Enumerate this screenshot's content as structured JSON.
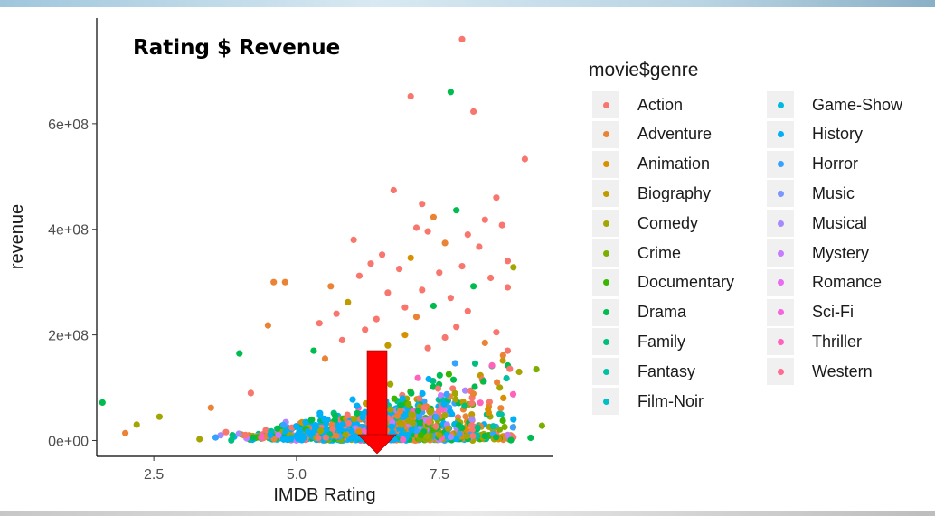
{
  "chart_data": {
    "type": "scatter",
    "title": "Rating $ Revenue",
    "xlabel": "IMDB Rating",
    "ylabel": "revenue",
    "x_ticks": [
      "2.5",
      "5.0",
      "7.5"
    ],
    "x_tick_values": [
      2.5,
      5.0,
      7.5
    ],
    "y_ticks": [
      "0e+00",
      "2e+08",
      "4e+08",
      "6e+08"
    ],
    "y_tick_values": [
      0,
      200000000,
      400000000,
      600000000
    ],
    "xlim": [
      1.5,
      9.5
    ],
    "ylim": [
      -30000000,
      800000000
    ],
    "grid": false,
    "legend_title": "movie$genre",
    "legend_position": "right",
    "legend": [
      {
        "name": "Action",
        "color": "#F8766D"
      },
      {
        "name": "Adventure",
        "color": "#EB8335"
      },
      {
        "name": "Animation",
        "color": "#D89000"
      },
      {
        "name": "Biography",
        "color": "#C09B00"
      },
      {
        "name": "Comedy",
        "color": "#A3A500"
      },
      {
        "name": "Crime",
        "color": "#7CAE00"
      },
      {
        "name": "Documentary",
        "color": "#39B600"
      },
      {
        "name": "Drama",
        "color": "#00BB4E"
      },
      {
        "name": "Family",
        "color": "#00BF7D"
      },
      {
        "name": "Fantasy",
        "color": "#00C1A3"
      },
      {
        "name": "Film-Noir",
        "color": "#00BFC4"
      },
      {
        "name": "Game-Show",
        "color": "#00BAE0"
      },
      {
        "name": "History",
        "color": "#00B0F6"
      },
      {
        "name": "Horror",
        "color": "#35A2FF"
      },
      {
        "name": "Music",
        "color": "#7997FF"
      },
      {
        "name": "Musical",
        "color": "#A58AFF"
      },
      {
        "name": "Mystery",
        "color": "#C77CFF"
      },
      {
        "name": "Romance",
        "color": "#E76BF3"
      },
      {
        "name": "Sci-Fi",
        "color": "#F863DF"
      },
      {
        "name": "Thriller",
        "color": "#FF62BC"
      },
      {
        "name": "Western",
        "color": "#FF6C91"
      }
    ],
    "points": [
      {
        "x": 7.9,
        "y": 760000000,
        "g": 0
      },
      {
        "x": 7.7,
        "y": 660000000,
        "g": 7
      },
      {
        "x": 7.0,
        "y": 652000000,
        "g": 0
      },
      {
        "x": 8.1,
        "y": 623000000,
        "g": 0
      },
      {
        "x": 9.0,
        "y": 533000000,
        "g": 0
      },
      {
        "x": 6.7,
        "y": 474000000,
        "g": 0
      },
      {
        "x": 8.5,
        "y": 460000000,
        "g": 0
      },
      {
        "x": 7.2,
        "y": 448000000,
        "g": 0
      },
      {
        "x": 7.8,
        "y": 436000000,
        "g": 7
      },
      {
        "x": 7.4,
        "y": 423000000,
        "g": 1
      },
      {
        "x": 8.3,
        "y": 418000000,
        "g": 0
      },
      {
        "x": 8.6,
        "y": 408000000,
        "g": 0
      },
      {
        "x": 7.1,
        "y": 403000000,
        "g": 0
      },
      {
        "x": 7.3,
        "y": 396000000,
        "g": 0
      },
      {
        "x": 8.0,
        "y": 390000000,
        "g": 0
      },
      {
        "x": 6.0,
        "y": 380000000,
        "g": 0
      },
      {
        "x": 7.6,
        "y": 374000000,
        "g": 1
      },
      {
        "x": 8.2,
        "y": 367000000,
        "g": 0
      },
      {
        "x": 6.5,
        "y": 352000000,
        "g": 0
      },
      {
        "x": 7.0,
        "y": 346000000,
        "g": 2
      },
      {
        "x": 8.7,
        "y": 340000000,
        "g": 0
      },
      {
        "x": 6.3,
        "y": 335000000,
        "g": 0
      },
      {
        "x": 7.9,
        "y": 330000000,
        "g": 0
      },
      {
        "x": 6.8,
        "y": 325000000,
        "g": 0
      },
      {
        "x": 8.8,
        "y": 328000000,
        "g": 4
      },
      {
        "x": 7.5,
        "y": 318000000,
        "g": 0
      },
      {
        "x": 6.1,
        "y": 312000000,
        "g": 0
      },
      {
        "x": 8.4,
        "y": 308000000,
        "g": 0
      },
      {
        "x": 4.6,
        "y": 300000000,
        "g": 1
      },
      {
        "x": 4.8,
        "y": 300000000,
        "g": 1
      },
      {
        "x": 5.6,
        "y": 292000000,
        "g": 1
      },
      {
        "x": 8.1,
        "y": 292000000,
        "g": 7
      },
      {
        "x": 7.2,
        "y": 285000000,
        "g": 0
      },
      {
        "x": 6.6,
        "y": 280000000,
        "g": 0
      },
      {
        "x": 8.7,
        "y": 290000000,
        "g": 0
      },
      {
        "x": 7.7,
        "y": 270000000,
        "g": 0
      },
      {
        "x": 5.9,
        "y": 262000000,
        "g": 3
      },
      {
        "x": 7.4,
        "y": 255000000,
        "g": 7
      },
      {
        "x": 6.9,
        "y": 252000000,
        "g": 0
      },
      {
        "x": 8.0,
        "y": 245000000,
        "g": 0
      },
      {
        "x": 5.7,
        "y": 240000000,
        "g": 0
      },
      {
        "x": 7.1,
        "y": 234000000,
        "g": 1
      },
      {
        "x": 6.4,
        "y": 230000000,
        "g": 0
      },
      {
        "x": 5.4,
        "y": 222000000,
        "g": 0
      },
      {
        "x": 4.5,
        "y": 218000000,
        "g": 1
      },
      {
        "x": 7.8,
        "y": 215000000,
        "g": 0
      },
      {
        "x": 6.2,
        "y": 210000000,
        "g": 0
      },
      {
        "x": 8.5,
        "y": 205000000,
        "g": 0
      },
      {
        "x": 6.9,
        "y": 200000000,
        "g": 2
      },
      {
        "x": 7.6,
        "y": 195000000,
        "g": 0
      },
      {
        "x": 5.8,
        "y": 190000000,
        "g": 0
      },
      {
        "x": 8.3,
        "y": 185000000,
        "g": 1
      },
      {
        "x": 6.6,
        "y": 180000000,
        "g": 3
      },
      {
        "x": 5.3,
        "y": 170000000,
        "g": 7
      },
      {
        "x": 7.3,
        "y": 175000000,
        "g": 0
      },
      {
        "x": 4.0,
        "y": 165000000,
        "g": 7
      },
      {
        "x": 8.7,
        "y": 170000000,
        "g": 0
      },
      {
        "x": 5.5,
        "y": 155000000,
        "g": 1
      },
      {
        "x": 8.9,
        "y": 130000000,
        "g": 4
      },
      {
        "x": 9.2,
        "y": 135000000,
        "g": 5
      },
      {
        "x": 1.6,
        "y": 72000000,
        "g": 7
      },
      {
        "x": 4.2,
        "y": 90000000,
        "g": 0
      },
      {
        "x": 3.5,
        "y": 62000000,
        "g": 1
      },
      {
        "x": 2.6,
        "y": 45000000,
        "g": 4
      },
      {
        "x": 2.2,
        "y": 30000000,
        "g": 4
      },
      {
        "x": 2.0,
        "y": 14000000,
        "g": 1
      },
      {
        "x": 9.1,
        "y": 5000000,
        "g": 7
      },
      {
        "x": 9.3,
        "y": 28000000,
        "g": 5
      },
      {
        "x": 8.8,
        "y": 40000000,
        "g": 12
      }
    ]
  },
  "annotation": {
    "arrow_color": "#FF0000"
  }
}
